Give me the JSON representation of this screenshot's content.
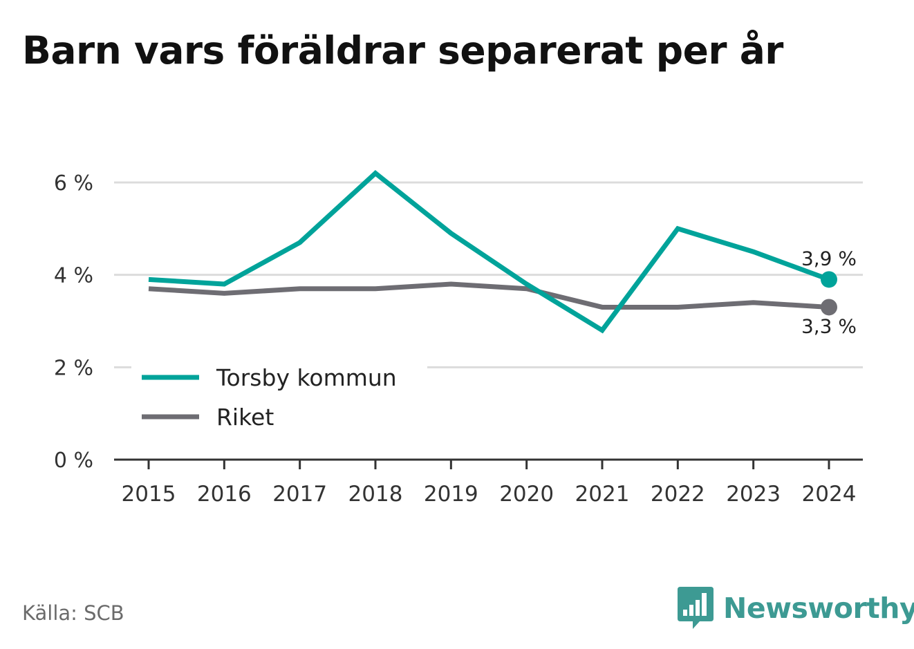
{
  "title": "Barn vars föräldrar separerat per år",
  "source": "Källa: SCB",
  "brand": {
    "name": "Newsworthy",
    "logo_icon": "bar-chart-speech-bubble-icon",
    "color": "#3d9a93"
  },
  "chart_data": {
    "type": "line",
    "title": "Barn vars föräldrar separerat per år",
    "xlabel": "",
    "ylabel": "",
    "x": [
      "2015",
      "2016",
      "2017",
      "2018",
      "2019",
      "2020",
      "2021",
      "2022",
      "2023",
      "2024"
    ],
    "ylim": [
      0,
      6.5
    ],
    "yticks": [
      0,
      2,
      4,
      6
    ],
    "ytick_labels": [
      "0 %",
      "2 %",
      "4 %",
      "6 %"
    ],
    "grid": true,
    "legend_position": "bottom-left",
    "series": [
      {
        "name": "Torsby kommun",
        "color": "#00a39a",
        "values": [
          3.9,
          3.8,
          4.7,
          6.2,
          4.9,
          3.8,
          2.8,
          5.0,
          4.5,
          3.9
        ],
        "end_label": "3,9 %"
      },
      {
        "name": "Riket",
        "color": "#6e6d73",
        "values": [
          3.7,
          3.6,
          3.7,
          3.7,
          3.8,
          3.7,
          3.3,
          3.3,
          3.4,
          3.3
        ],
        "end_label": "3,3 %"
      }
    ]
  }
}
